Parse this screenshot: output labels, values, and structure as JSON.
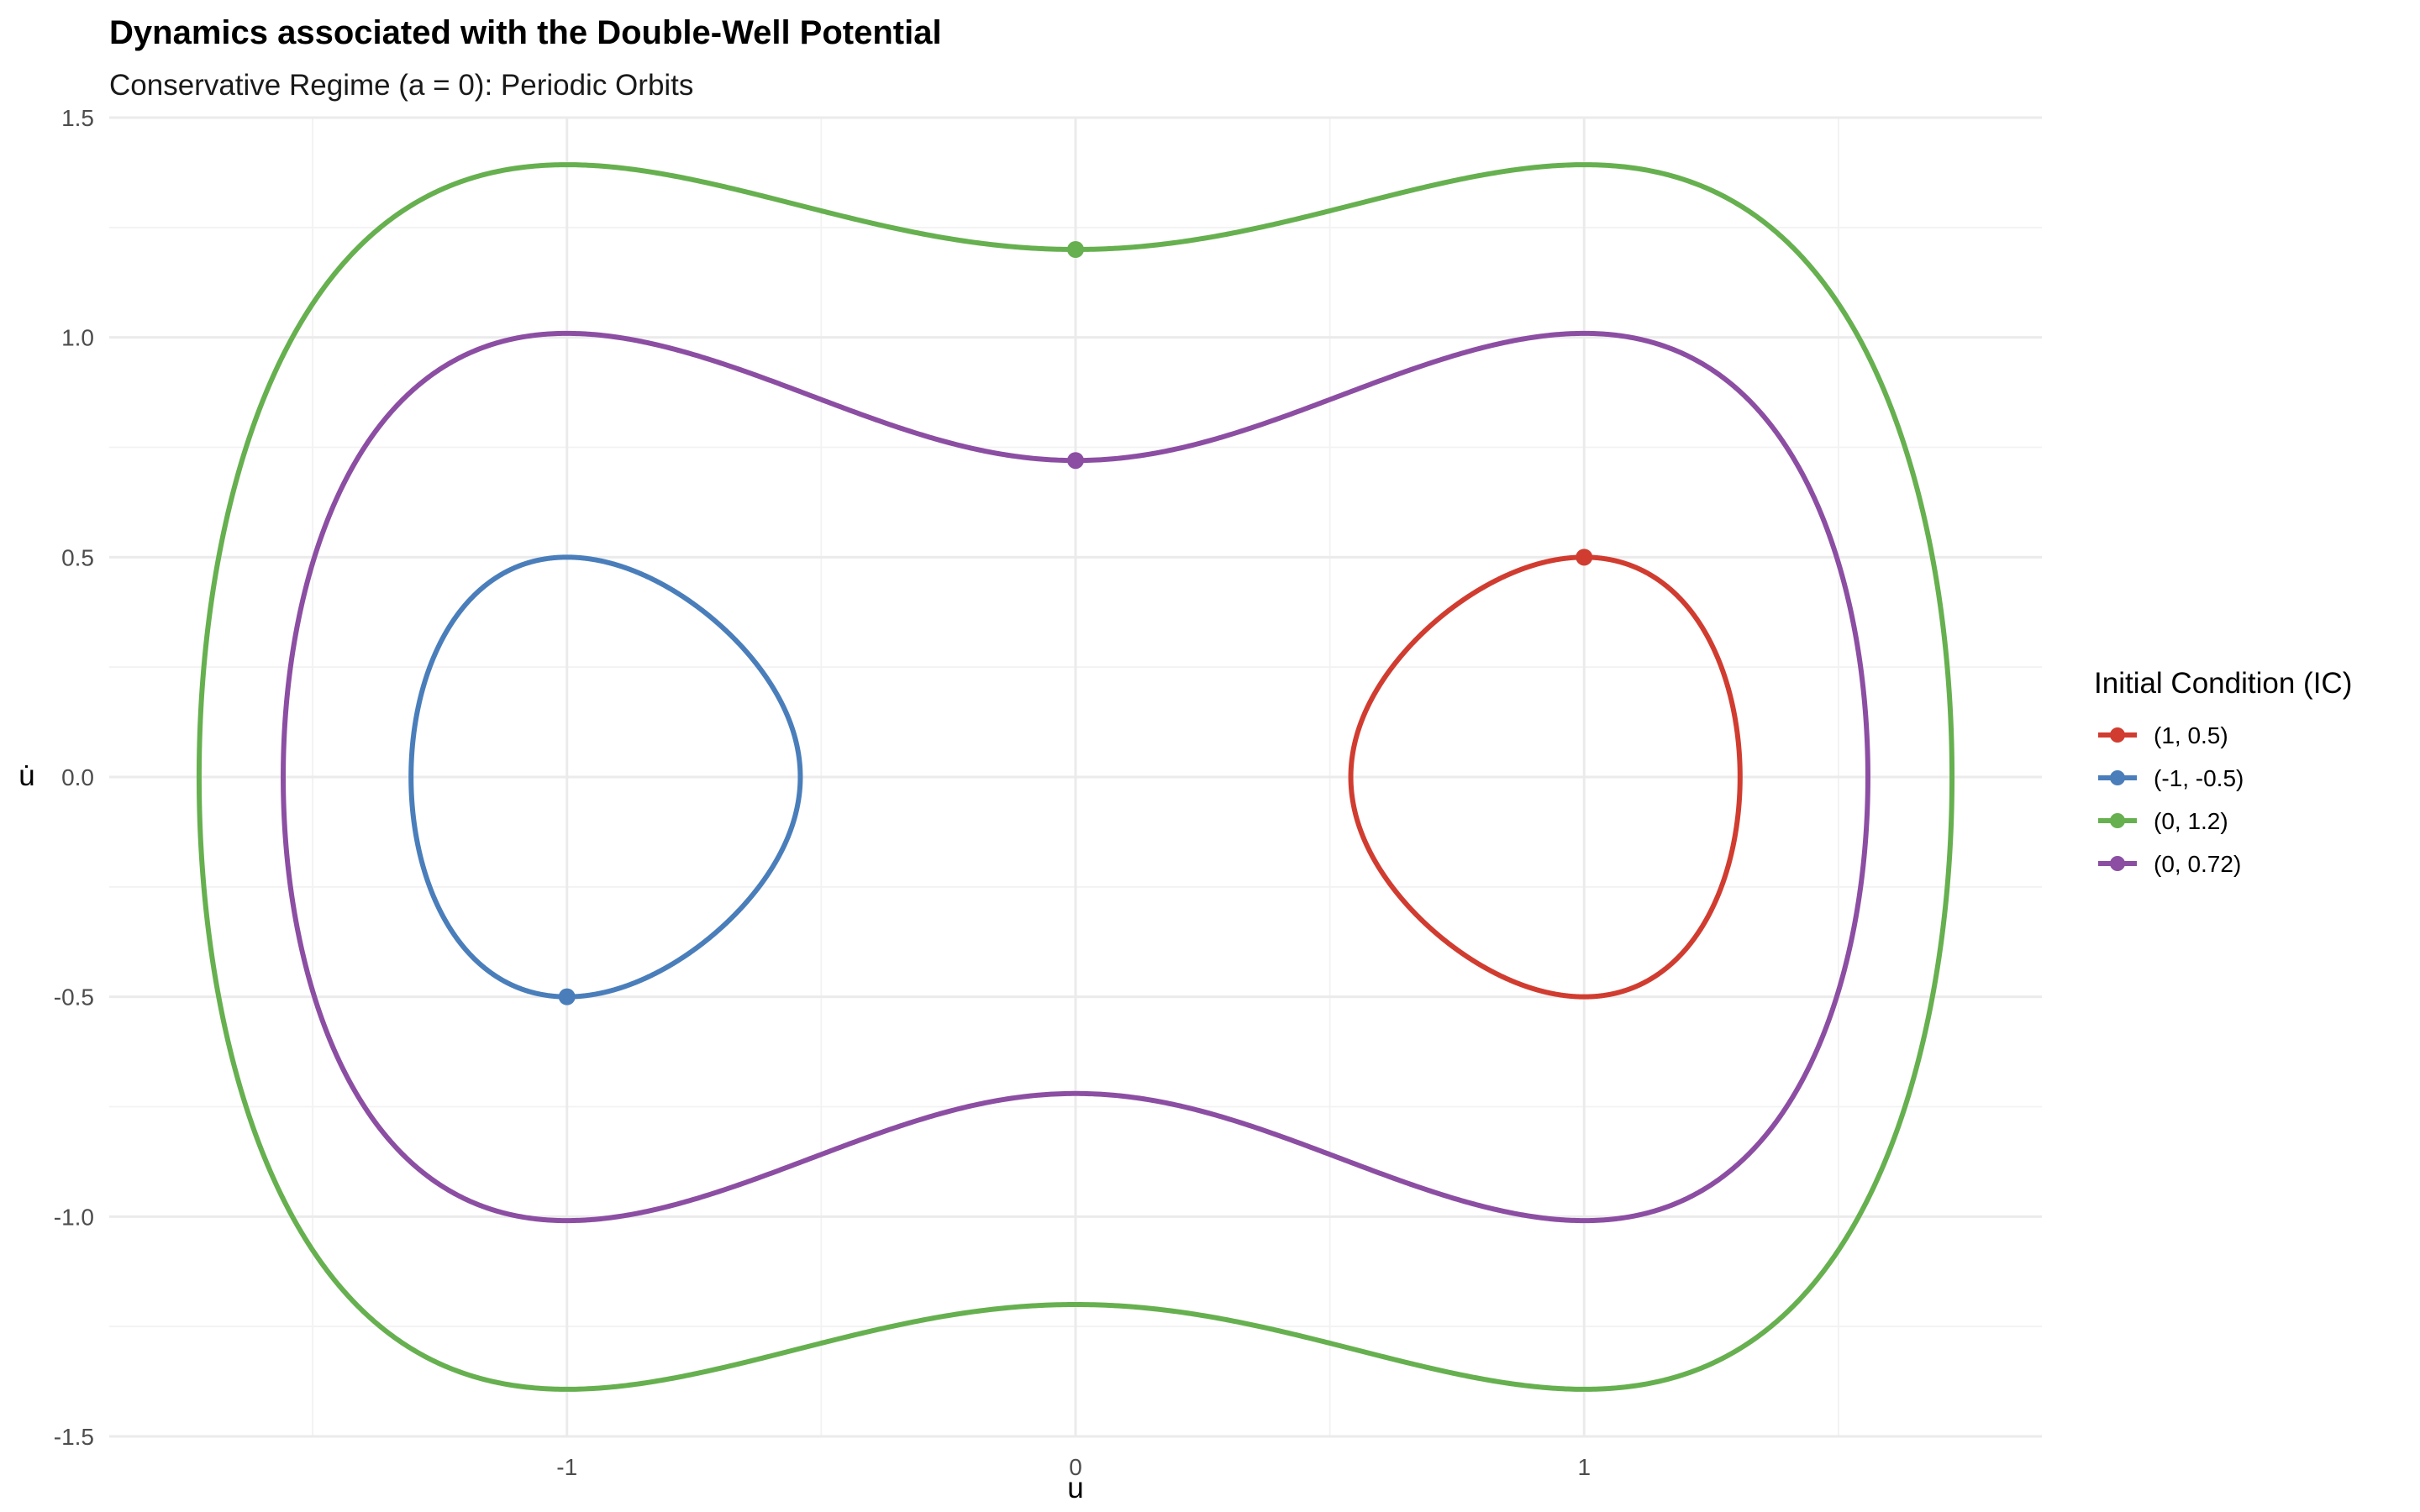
{
  "chart_data": {
    "type": "line",
    "title": "Dynamics associated with the Double-Well Potential",
    "subtitle": "Conservative Regime (a = 0): Periodic Orbits",
    "xlabel": "u",
    "ylabel": "u̇",
    "xlim": [
      -1.9,
      1.9
    ],
    "ylim": [
      -1.5,
      1.5
    ],
    "x_ticks": [
      -1,
      0,
      1
    ],
    "x_tick_labels": [
      "-1",
      "0",
      "1"
    ],
    "y_ticks": [
      -1.5,
      -1.0,
      -0.5,
      0.0,
      0.5,
      1.0,
      1.5
    ],
    "y_tick_labels": [
      "-1.5",
      "-1.0",
      "-0.5",
      "0.0",
      "0.5",
      "1.0",
      "1.5"
    ],
    "grid": true,
    "legend": {
      "title": "Initial Condition (IC)",
      "position": "right"
    },
    "series": [
      {
        "name": "(1, 0.5)",
        "u0": 1,
        "v0": 0.5,
        "color": "#d13c30"
      },
      {
        "name": "(-1, -0.5)",
        "u0": -1,
        "v0": -0.5,
        "color": "#4a7ebb"
      },
      {
        "name": "(0, 1.2)",
        "u0": 0,
        "v0": 1.2,
        "color": "#66b04f"
      },
      {
        "name": "(0, 0.72)",
        "u0": 0,
        "v0": 0.72,
        "color": "#8c4ea3"
      }
    ]
  }
}
